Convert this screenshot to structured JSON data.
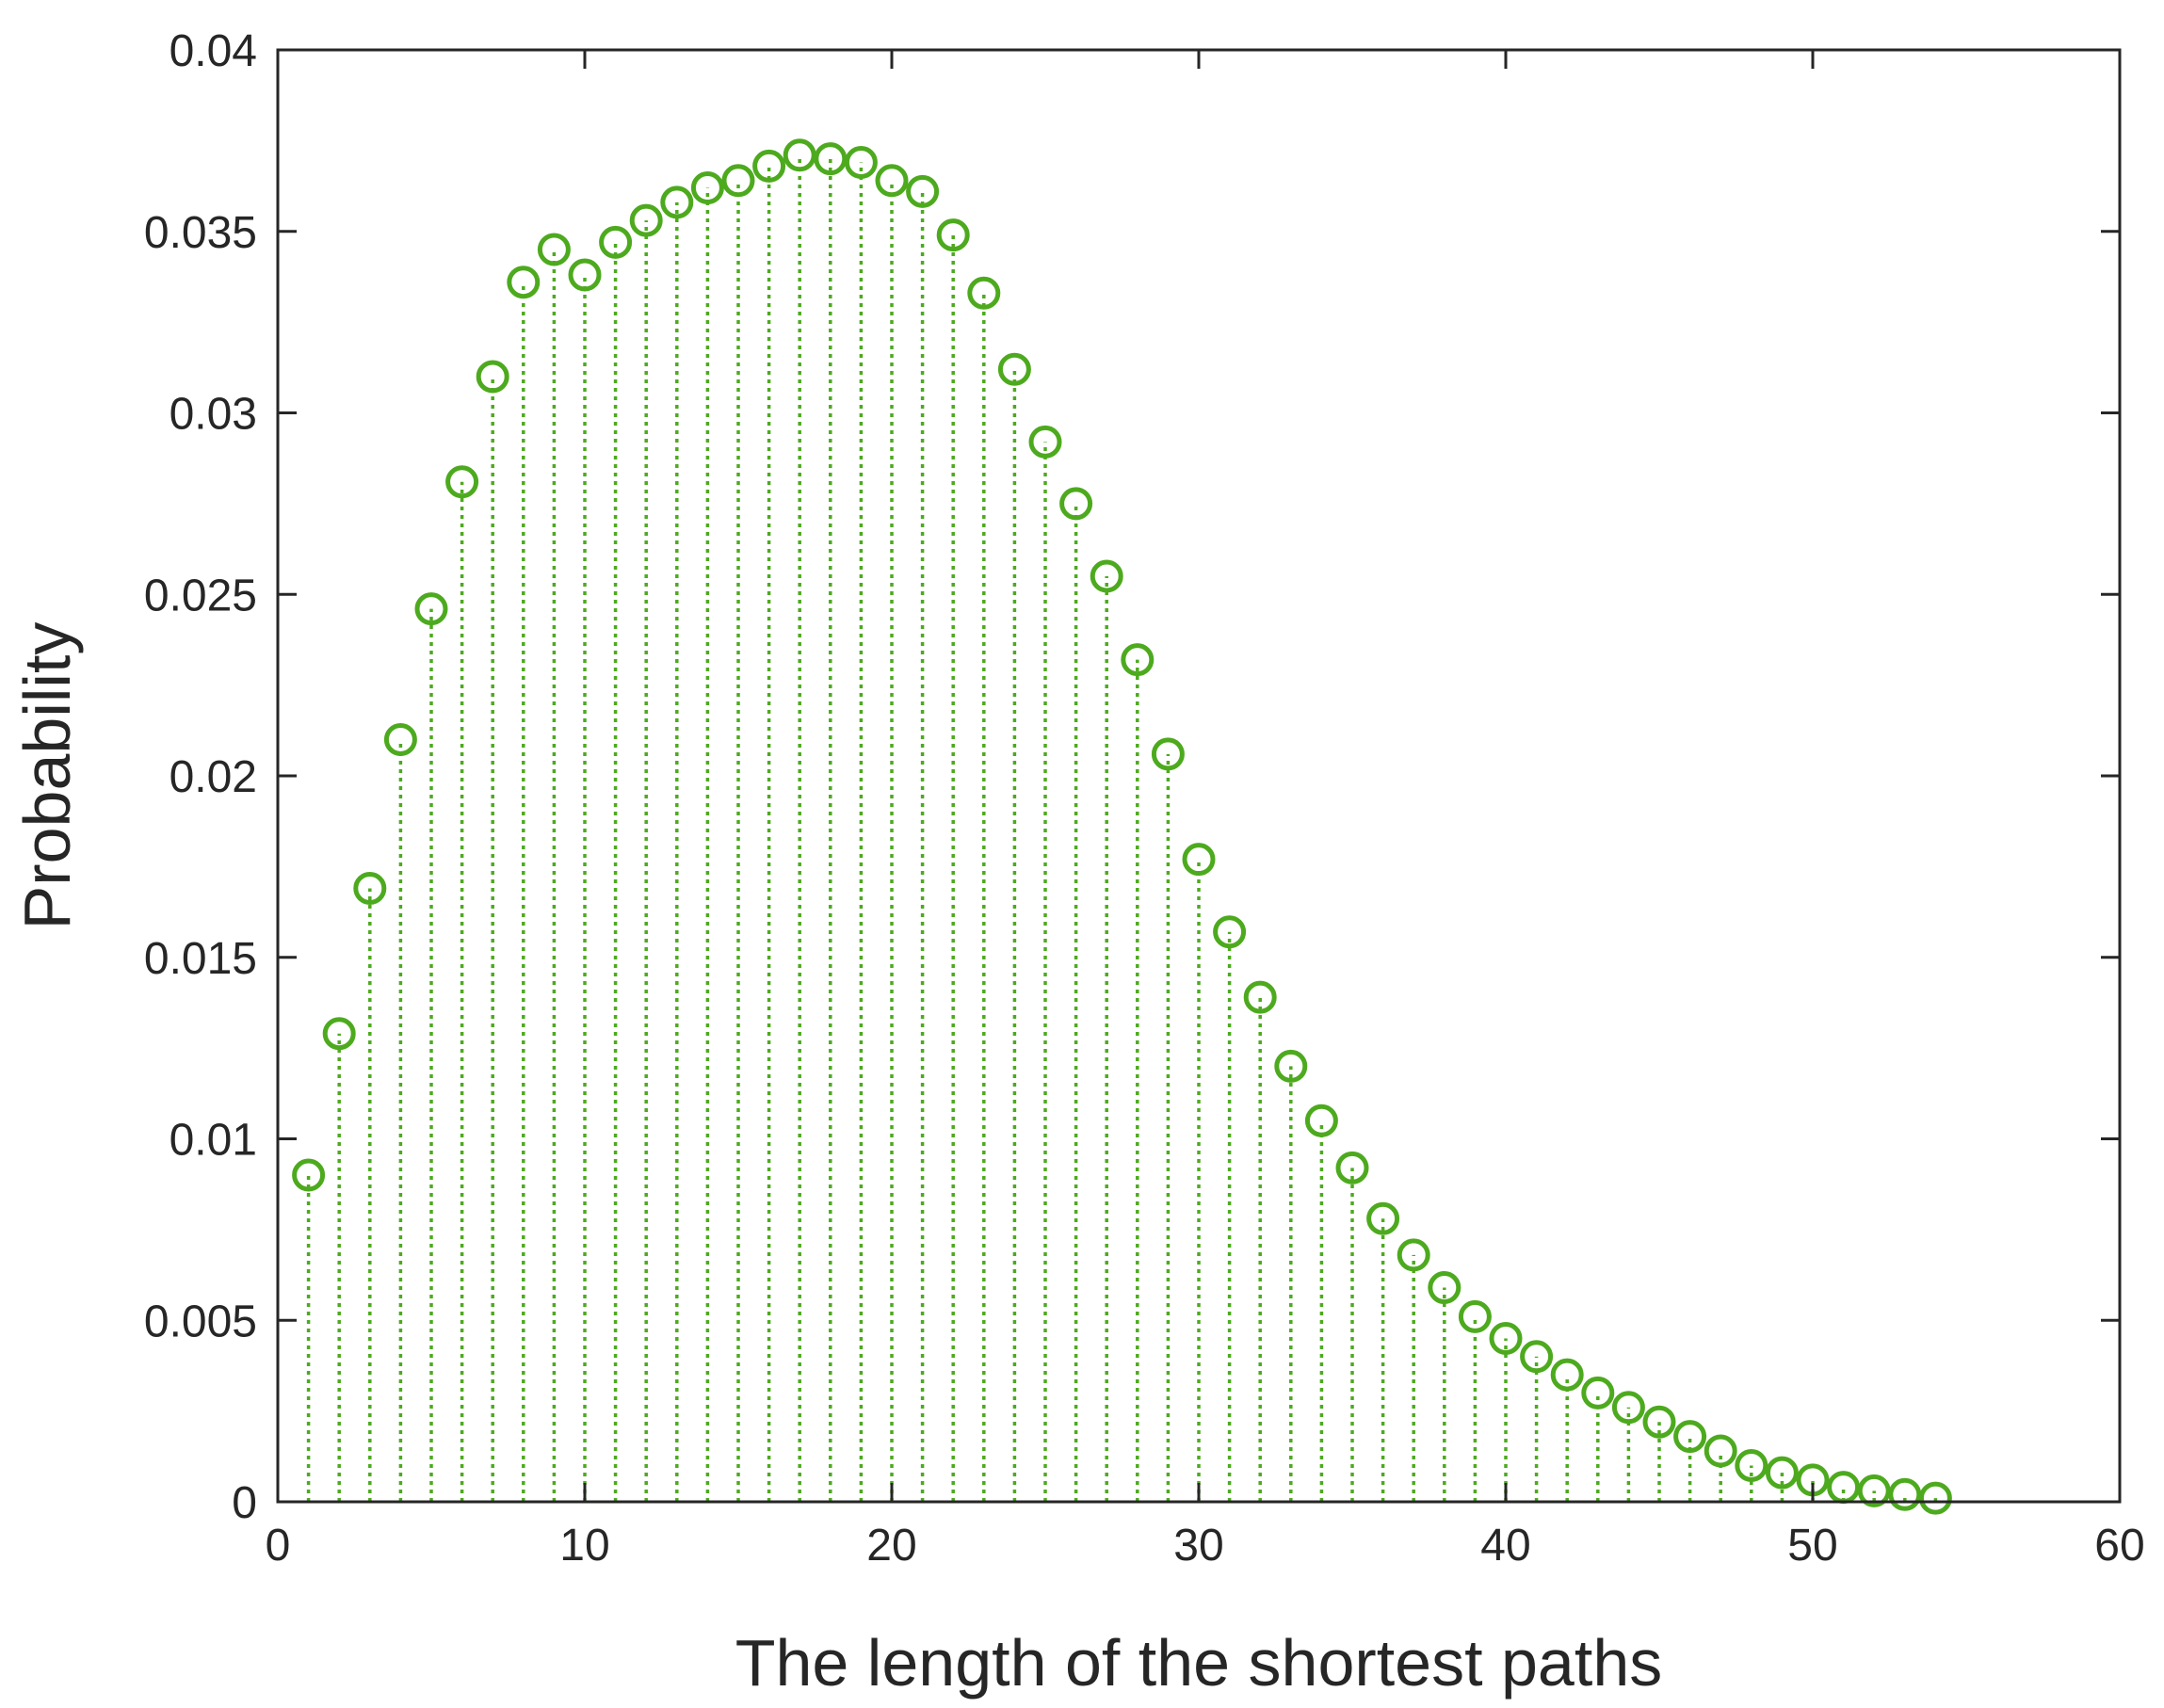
{
  "chart_data": {
    "type": "stem",
    "title": "",
    "xlabel": "The length of the shortest paths",
    "ylabel": "Probability",
    "xlim": [
      0,
      60
    ],
    "ylim": [
      0,
      0.04
    ],
    "xticks": [
      0,
      10,
      20,
      30,
      40,
      50,
      60
    ],
    "xtick_labels": [
      "0",
      "10",
      "20",
      "30",
      "40",
      "50",
      "60"
    ],
    "yticks": [
      0,
      0.005,
      0.01,
      0.015,
      0.02,
      0.025,
      0.03,
      0.035,
      0.04
    ],
    "ytick_labels": [
      "0",
      "0.005",
      "0.01",
      "0.015",
      "0.02",
      "0.025",
      "0.03",
      "0.035",
      "0.04"
    ],
    "grid": false,
    "box": true,
    "color": "#4DAA1E",
    "marker": "circle",
    "line_style": "dotted",
    "series": [
      {
        "x": [
          1,
          2,
          3,
          4,
          5,
          6,
          7,
          8,
          9,
          10,
          11,
          12,
          13,
          14,
          15,
          16,
          17,
          18,
          19,
          20,
          21,
          22,
          23,
          24,
          25,
          26,
          27,
          28,
          29,
          30,
          31,
          32,
          33,
          34,
          35,
          36,
          37,
          38,
          39,
          40,
          41,
          42,
          43,
          44,
          45,
          46,
          47,
          48,
          49,
          50,
          51,
          52,
          53,
          54
        ],
        "y": [
          0.009,
          0.0129,
          0.0169,
          0.021,
          0.0246,
          0.0281,
          0.031,
          0.0336,
          0.0345,
          0.0338,
          0.0347,
          0.0353,
          0.0358,
          0.0362,
          0.0364,
          0.0368,
          0.0371,
          0.037,
          0.0369,
          0.0364,
          0.0361,
          0.0349,
          0.0333,
          0.0312,
          0.0292,
          0.0275,
          0.0255,
          0.0232,
          0.0206,
          0.0177,
          0.0157,
          0.0139,
          0.012,
          0.0105,
          0.0092,
          0.0078,
          0.0068,
          0.0059,
          0.0051,
          0.0045,
          0.004,
          0.0035,
          0.003,
          0.0026,
          0.0022,
          0.0018,
          0.0014,
          0.001,
          0.0008,
          0.0006,
          0.0004,
          0.0003,
          0.0002,
          0.0001
        ]
      }
    ]
  }
}
